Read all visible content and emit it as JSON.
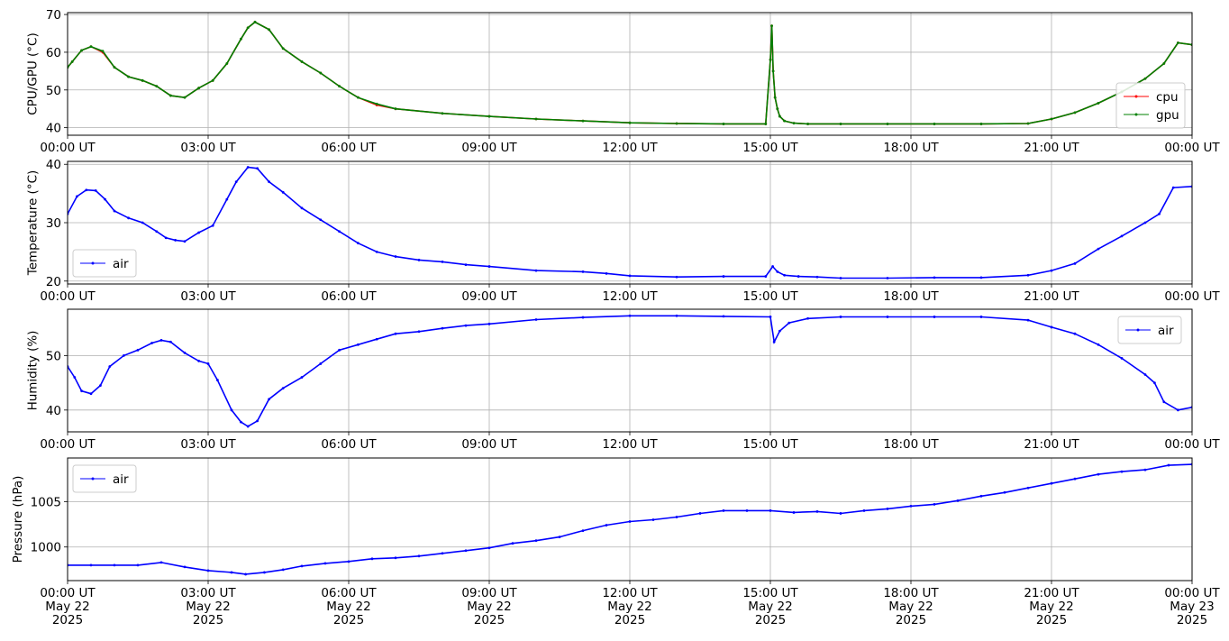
{
  "chart_data": [
    {
      "type": "line",
      "ylabel": "CPU/GPU (°C)",
      "ylim": [
        38,
        70.5
      ],
      "yticks": [
        40,
        50,
        60,
        70
      ],
      "xticks": [
        "00:00 UT",
        "03:00 UT",
        "06:00 UT",
        "09:00 UT",
        "12:00 UT",
        "15:00 UT",
        "18:00 UT",
        "21:00 UT",
        "00:00 UT"
      ],
      "grid": true,
      "legend_position": "lower-right",
      "series": [
        {
          "name": "cpu",
          "color": "#ff0000",
          "x": [
            0,
            0.1,
            0.3,
            0.5,
            0.75,
            1.0,
            1.3,
            1.6,
            1.9,
            2.2,
            2.5,
            2.8,
            3.1,
            3.4,
            3.7,
            3.85,
            4.0,
            4.3,
            4.6,
            5.0,
            5.4,
            5.8,
            6.2,
            6.6,
            7.0,
            8.0,
            9.0,
            10.0,
            11.0,
            12.0,
            13.0,
            14.0,
            14.9,
            15.0,
            15.03,
            15.06,
            15.1,
            15.15,
            15.2,
            15.3,
            15.5,
            15.8,
            16.5,
            17.5,
            18.5,
            19.5,
            20.5,
            21.0,
            21.5,
            22.0,
            22.5,
            23.0,
            23.4,
            23.7,
            24.0
          ],
          "y": [
            56,
            57.5,
            60.5,
            61.5,
            60,
            56,
            53.5,
            52.5,
            51,
            48.5,
            48,
            50.5,
            52.5,
            57,
            63.5,
            66.5,
            68,
            66,
            61,
            57.5,
            54.5,
            51,
            48,
            46,
            45,
            43.8,
            43,
            42.3,
            41.8,
            41.3,
            41.1,
            41.0,
            41.0,
            58,
            67,
            55,
            48,
            45,
            43,
            41.8,
            41.2,
            41.0,
            41.0,
            41.0,
            41.0,
            41.0,
            41.1,
            42.3,
            44,
            46.5,
            49.5,
            53,
            57,
            62.5,
            62
          ]
        },
        {
          "name": "gpu",
          "color": "#008000",
          "x": [
            0,
            0.1,
            0.3,
            0.5,
            0.75,
            1.0,
            1.3,
            1.6,
            1.9,
            2.2,
            2.5,
            2.8,
            3.1,
            3.4,
            3.7,
            3.85,
            4.0,
            4.3,
            4.6,
            5.0,
            5.4,
            5.8,
            6.2,
            6.6,
            7.0,
            8.0,
            9.0,
            10.0,
            11.0,
            12.0,
            13.0,
            14.0,
            14.9,
            15.0,
            15.03,
            15.06,
            15.1,
            15.15,
            15.2,
            15.3,
            15.5,
            15.8,
            16.5,
            17.5,
            18.5,
            19.5,
            20.5,
            21.0,
            21.5,
            22.0,
            22.5,
            23.0,
            23.4,
            23.7,
            24.0
          ],
          "y": [
            56,
            57.5,
            60.5,
            61.5,
            60.3,
            56,
            53.5,
            52.5,
            51,
            48.5,
            48,
            50.5,
            52.5,
            57,
            63.5,
            66.5,
            68,
            66,
            61,
            57.5,
            54.5,
            51,
            48,
            46.3,
            45,
            43.8,
            43,
            42.3,
            41.8,
            41.3,
            41.1,
            41.0,
            41.0,
            58,
            67,
            55,
            48,
            45,
            43,
            41.8,
            41.2,
            41.0,
            41.0,
            41.0,
            41.0,
            41.0,
            41.1,
            42.3,
            44,
            46.5,
            49.5,
            53,
            57,
            62.5,
            62
          ]
        }
      ]
    },
    {
      "type": "line",
      "ylabel": "Temperature (°C)",
      "ylim": [
        19.5,
        40.5
      ],
      "yticks": [
        20,
        30,
        40
      ],
      "xticks": [
        "00:00 UT",
        "03:00 UT",
        "06:00 UT",
        "09:00 UT",
        "12:00 UT",
        "15:00 UT",
        "18:00 UT",
        "21:00 UT",
        "00:00 UT"
      ],
      "grid": true,
      "legend_position": "lower-left",
      "series": [
        {
          "name": "air",
          "color": "#0000ff",
          "x": [
            0,
            0.2,
            0.4,
            0.6,
            0.8,
            1.0,
            1.3,
            1.6,
            1.9,
            2.1,
            2.3,
            2.5,
            2.8,
            3.1,
            3.4,
            3.6,
            3.85,
            4.05,
            4.3,
            4.6,
            5.0,
            5.4,
            5.8,
            6.2,
            6.6,
            7.0,
            7.5,
            8.0,
            8.5,
            9.0,
            10.0,
            11.0,
            11.5,
            12.0,
            13.0,
            14.0,
            14.9,
            15.05,
            15.15,
            15.3,
            15.6,
            16.0,
            16.5,
            17.5,
            18.5,
            19.5,
            20.5,
            21.0,
            21.5,
            22.0,
            22.5,
            23.0,
            23.3,
            23.6,
            24.0
          ],
          "y": [
            31.5,
            34.5,
            35.6,
            35.5,
            34,
            32,
            30.8,
            30,
            28.5,
            27.4,
            27,
            26.8,
            28.3,
            29.5,
            34,
            37,
            39.5,
            39.3,
            37,
            35.2,
            32.5,
            30.5,
            28.5,
            26.5,
            25,
            24.2,
            23.6,
            23.3,
            22.8,
            22.5,
            21.8,
            21.6,
            21.3,
            20.9,
            20.7,
            20.8,
            20.8,
            22.5,
            21.6,
            21.0,
            20.8,
            20.7,
            20.5,
            20.5,
            20.6,
            20.6,
            21.0,
            21.8,
            23,
            25.5,
            27.7,
            30,
            31.5,
            36,
            36.2
          ]
        }
      ]
    },
    {
      "type": "line",
      "ylabel": "Humidity (%)",
      "ylim": [
        36,
        58.5
      ],
      "yticks": [
        40,
        50
      ],
      "xticks": [
        "00:00 UT",
        "03:00 UT",
        "06:00 UT",
        "09:00 UT",
        "12:00 UT",
        "15:00 UT",
        "18:00 UT",
        "21:00 UT",
        "00:00 UT"
      ],
      "grid": true,
      "legend_position": "top-right",
      "series": [
        {
          "name": "air",
          "color": "#0000ff",
          "x": [
            0,
            0.15,
            0.3,
            0.5,
            0.7,
            0.9,
            1.2,
            1.5,
            1.8,
            2.0,
            2.2,
            2.5,
            2.8,
            3.0,
            3.2,
            3.5,
            3.7,
            3.85,
            4.05,
            4.3,
            4.6,
            5.0,
            5.4,
            5.8,
            6.2,
            6.6,
            7.0,
            7.5,
            8.0,
            8.5,
            9.0,
            10.0,
            11.0,
            12.0,
            13.0,
            14.0,
            15.0,
            15.08,
            15.2,
            15.4,
            15.8,
            16.5,
            17.5,
            18.5,
            19.5,
            20.5,
            21.0,
            21.5,
            22.0,
            22.5,
            23.0,
            23.2,
            23.4,
            23.7,
            24.0
          ],
          "y": [
            48,
            46,
            43.5,
            43,
            44.5,
            48,
            50,
            51,
            52.3,
            52.8,
            52.5,
            50.5,
            49,
            48.5,
            45.5,
            40,
            37.8,
            37,
            38,
            42,
            44,
            46,
            48.5,
            51,
            52,
            53,
            54,
            54.4,
            55,
            55.5,
            55.8,
            56.6,
            57,
            57.3,
            57.3,
            57.2,
            57.1,
            52.5,
            54.5,
            56,
            56.8,
            57.1,
            57.1,
            57.1,
            57.1,
            56.5,
            55.2,
            54,
            52,
            49.5,
            46.5,
            45,
            41.5,
            40,
            40.5
          ]
        }
      ]
    },
    {
      "type": "line",
      "ylabel": "Pressure (hPa)",
      "ylim": [
        996.3,
        1009.8
      ],
      "yticks": [
        1000,
        1005
      ],
      "xticks": [
        "00:00 UT\nMay 22\n2025",
        "03:00 UT\nMay 22\n2025",
        "06:00 UT\nMay 22\n2025",
        "09:00 UT\nMay 22\n2025",
        "12:00 UT\nMay 22\n2025",
        "15:00 UT\nMay 22\n2025",
        "18:00 UT\nMay 22\n2025",
        "21:00 UT\nMay 22\n2025",
        "00:00 UT\nMay 23\n2025"
      ],
      "grid": true,
      "legend_position": "top-left",
      "series": [
        {
          "name": "air",
          "color": "#0000ff",
          "x": [
            0,
            0.5,
            1.0,
            1.5,
            2.0,
            2.5,
            3.0,
            3.5,
            3.8,
            4.2,
            4.6,
            5.0,
            5.5,
            6.0,
            6.5,
            7.0,
            7.5,
            8.0,
            8.5,
            9.0,
            9.5,
            10.0,
            10.5,
            11.0,
            11.5,
            12.0,
            12.5,
            13.0,
            13.5,
            14.0,
            14.5,
            15.0,
            15.5,
            16.0,
            16.5,
            17.0,
            17.5,
            18.0,
            18.5,
            19.0,
            19.5,
            20.0,
            20.5,
            21.0,
            21.5,
            22.0,
            22.5,
            23.0,
            23.5,
            24.0
          ],
          "y": [
            998.0,
            998.0,
            998.0,
            998.0,
            998.3,
            997.8,
            997.4,
            997.2,
            997.0,
            997.2,
            997.5,
            997.9,
            998.2,
            998.4,
            998.7,
            998.8,
            999.0,
            999.3,
            999.6,
            999.9,
            1000.4,
            1000.7,
            1001.1,
            1001.8,
            1002.4,
            1002.8,
            1003.0,
            1003.3,
            1003.7,
            1004.0,
            1004.0,
            1004.0,
            1003.8,
            1003.9,
            1003.7,
            1004.0,
            1004.2,
            1004.5,
            1004.7,
            1005.1,
            1005.6,
            1006.0,
            1006.5,
            1007.0,
            1007.5,
            1008.0,
            1008.3,
            1008.5,
            1009.0,
            1009.1
          ]
        }
      ]
    }
  ]
}
